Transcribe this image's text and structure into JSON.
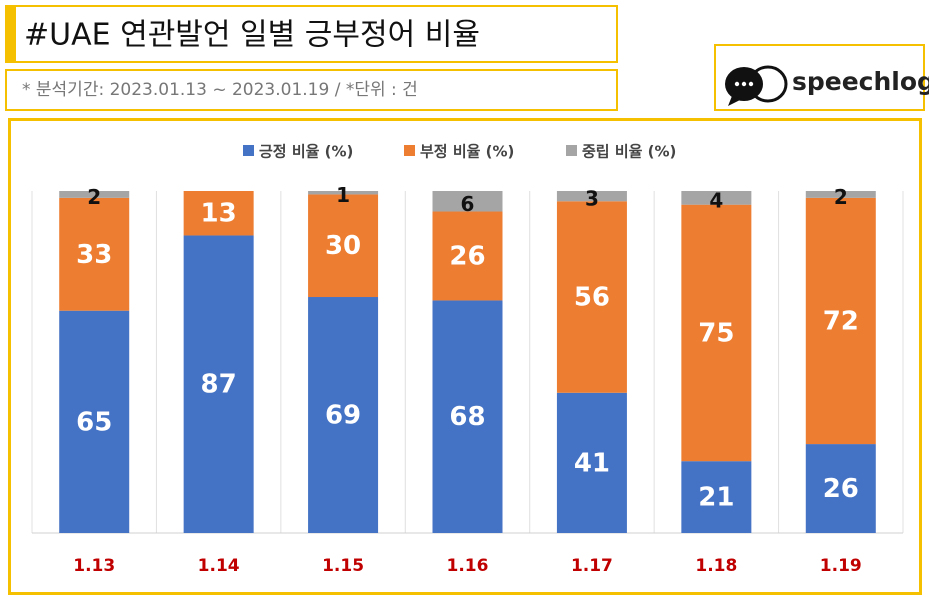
{
  "header": {
    "title": "#UAE 연관발언 일별 긍부정어 비율",
    "subtitle": "* 분석기간: 2023.01.13 ~ 2023.01.19 / *단위 : 건",
    "logo": "speechlog"
  },
  "chart_data": {
    "type": "stacked_bar",
    "categories": [
      "1.13",
      "1.14",
      "1.15",
      "1.16",
      "1.17",
      "1.18",
      "1.19"
    ],
    "series": [
      {
        "name": "긍정 비율 (%)",
        "color": "#4472c4",
        "values": [
          65,
          87,
          69,
          68,
          41,
          21,
          26
        ]
      },
      {
        "name": "부정 비율 (%)",
        "color": "#ed7d31",
        "values": [
          33,
          13,
          30,
          26,
          56,
          75,
          72
        ]
      },
      {
        "name": "중립 비율 (%)",
        "color": "#a5a5a5",
        "values": [
          2,
          null,
          1,
          6,
          3,
          4,
          2
        ]
      }
    ],
    "ylim": [
      0,
      100
    ],
    "legend": "top"
  }
}
